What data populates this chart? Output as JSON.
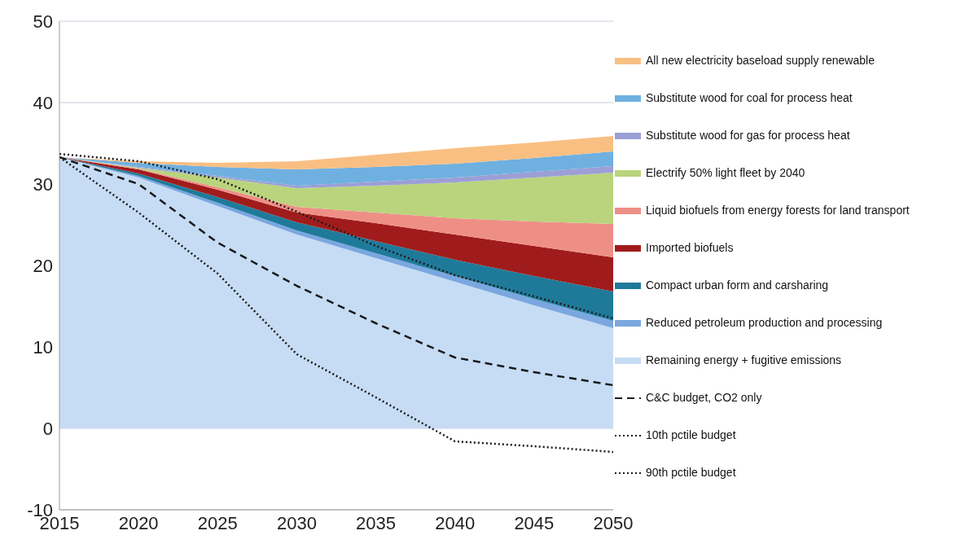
{
  "chart_data": {
    "type": "area",
    "stacked": true,
    "x": [
      2015,
      2020,
      2025,
      2030,
      2035,
      2040,
      2045,
      2050
    ],
    "xlim": [
      2015,
      2050
    ],
    "xticks": [
      2015,
      2020,
      2025,
      2030,
      2035,
      2040,
      2045,
      2050
    ],
    "ylim": [
      -10,
      50
    ],
    "yticks": [
      -10,
      0,
      10,
      20,
      30,
      40,
      50
    ],
    "grid": "y",
    "legend": "right",
    "series": [
      {
        "name": "Remaining energy + fugitive emissions",
        "color": "#c6dcf4",
        "values": [
          33.3,
          30.8,
          27.3,
          23.8,
          20.9,
          18.0,
          15.1,
          12.3
        ]
      },
      {
        "name": "Reduced petroleum production and processing",
        "color": "#7aa7e0",
        "values": [
          0,
          0.2,
          0.4,
          0.5,
          0.6,
          0.7,
          0.8,
          0.9
        ]
      },
      {
        "name": "Compact urban form and carsharing",
        "color": "#1f7a9a",
        "values": [
          0,
          0.3,
          0.7,
          1.0,
          1.5,
          2.0,
          2.8,
          3.6
        ]
      },
      {
        "name": "Imported biofuels",
        "color": "#a01c1c",
        "values": [
          0,
          0.5,
          0.9,
          1.2,
          2.2,
          3.1,
          3.7,
          4.2
        ]
      },
      {
        "name": "Liquid biofuels from energy forests for land transport",
        "color": "#ee8f86",
        "values": [
          0,
          0.1,
          0.3,
          0.7,
          1.3,
          2.0,
          3.0,
          4.1
        ]
      },
      {
        "name": "Electrify 50% light fleet by 2040",
        "color": "#b9d47d",
        "values": [
          0,
          0.1,
          1.2,
          2.3,
          3.3,
          4.4,
          5.4,
          6.3
        ]
      },
      {
        "name": "Substitute wood for gas for process heat",
        "color": "#9b9fd6",
        "values": [
          0,
          0.1,
          0.2,
          0.3,
          0.5,
          0.6,
          0.7,
          0.8
        ]
      },
      {
        "name": "Substitute wood for coal for process heat",
        "color": "#6fb0e0",
        "values": [
          0,
          0.5,
          1.1,
          2.0,
          1.8,
          1.7,
          1.7,
          1.8
        ]
      },
      {
        "name": "All new electricity baseload supply renewable",
        "color": "#f9bf82",
        "values": [
          0,
          0.2,
          0.5,
          1.0,
          1.5,
          1.9,
          1.9,
          1.9
        ]
      },
      {
        "name": "C&C budget, CO2 only",
        "type": "line",
        "line_style": "dashed",
        "color": "#1a1a1a",
        "values": [
          33.3,
          30.0,
          22.8,
          17.5,
          12.9,
          8.7,
          6.9,
          5.3
        ]
      },
      {
        "name": "10th pctile budget",
        "type": "line",
        "line_style": "dotted",
        "color": "#1a1a1a",
        "values": [
          33.3,
          26.5,
          19.0,
          9.1,
          3.8,
          -1.6,
          -2.2,
          -2.9
        ]
      },
      {
        "name": "90th pctile budget",
        "type": "line",
        "line_style": "dotted",
        "color": "#1a1a1a",
        "values": [
          33.7,
          32.8,
          30.6,
          26.6,
          22.4,
          18.8,
          16.2,
          13.5
        ]
      }
    ]
  }
}
